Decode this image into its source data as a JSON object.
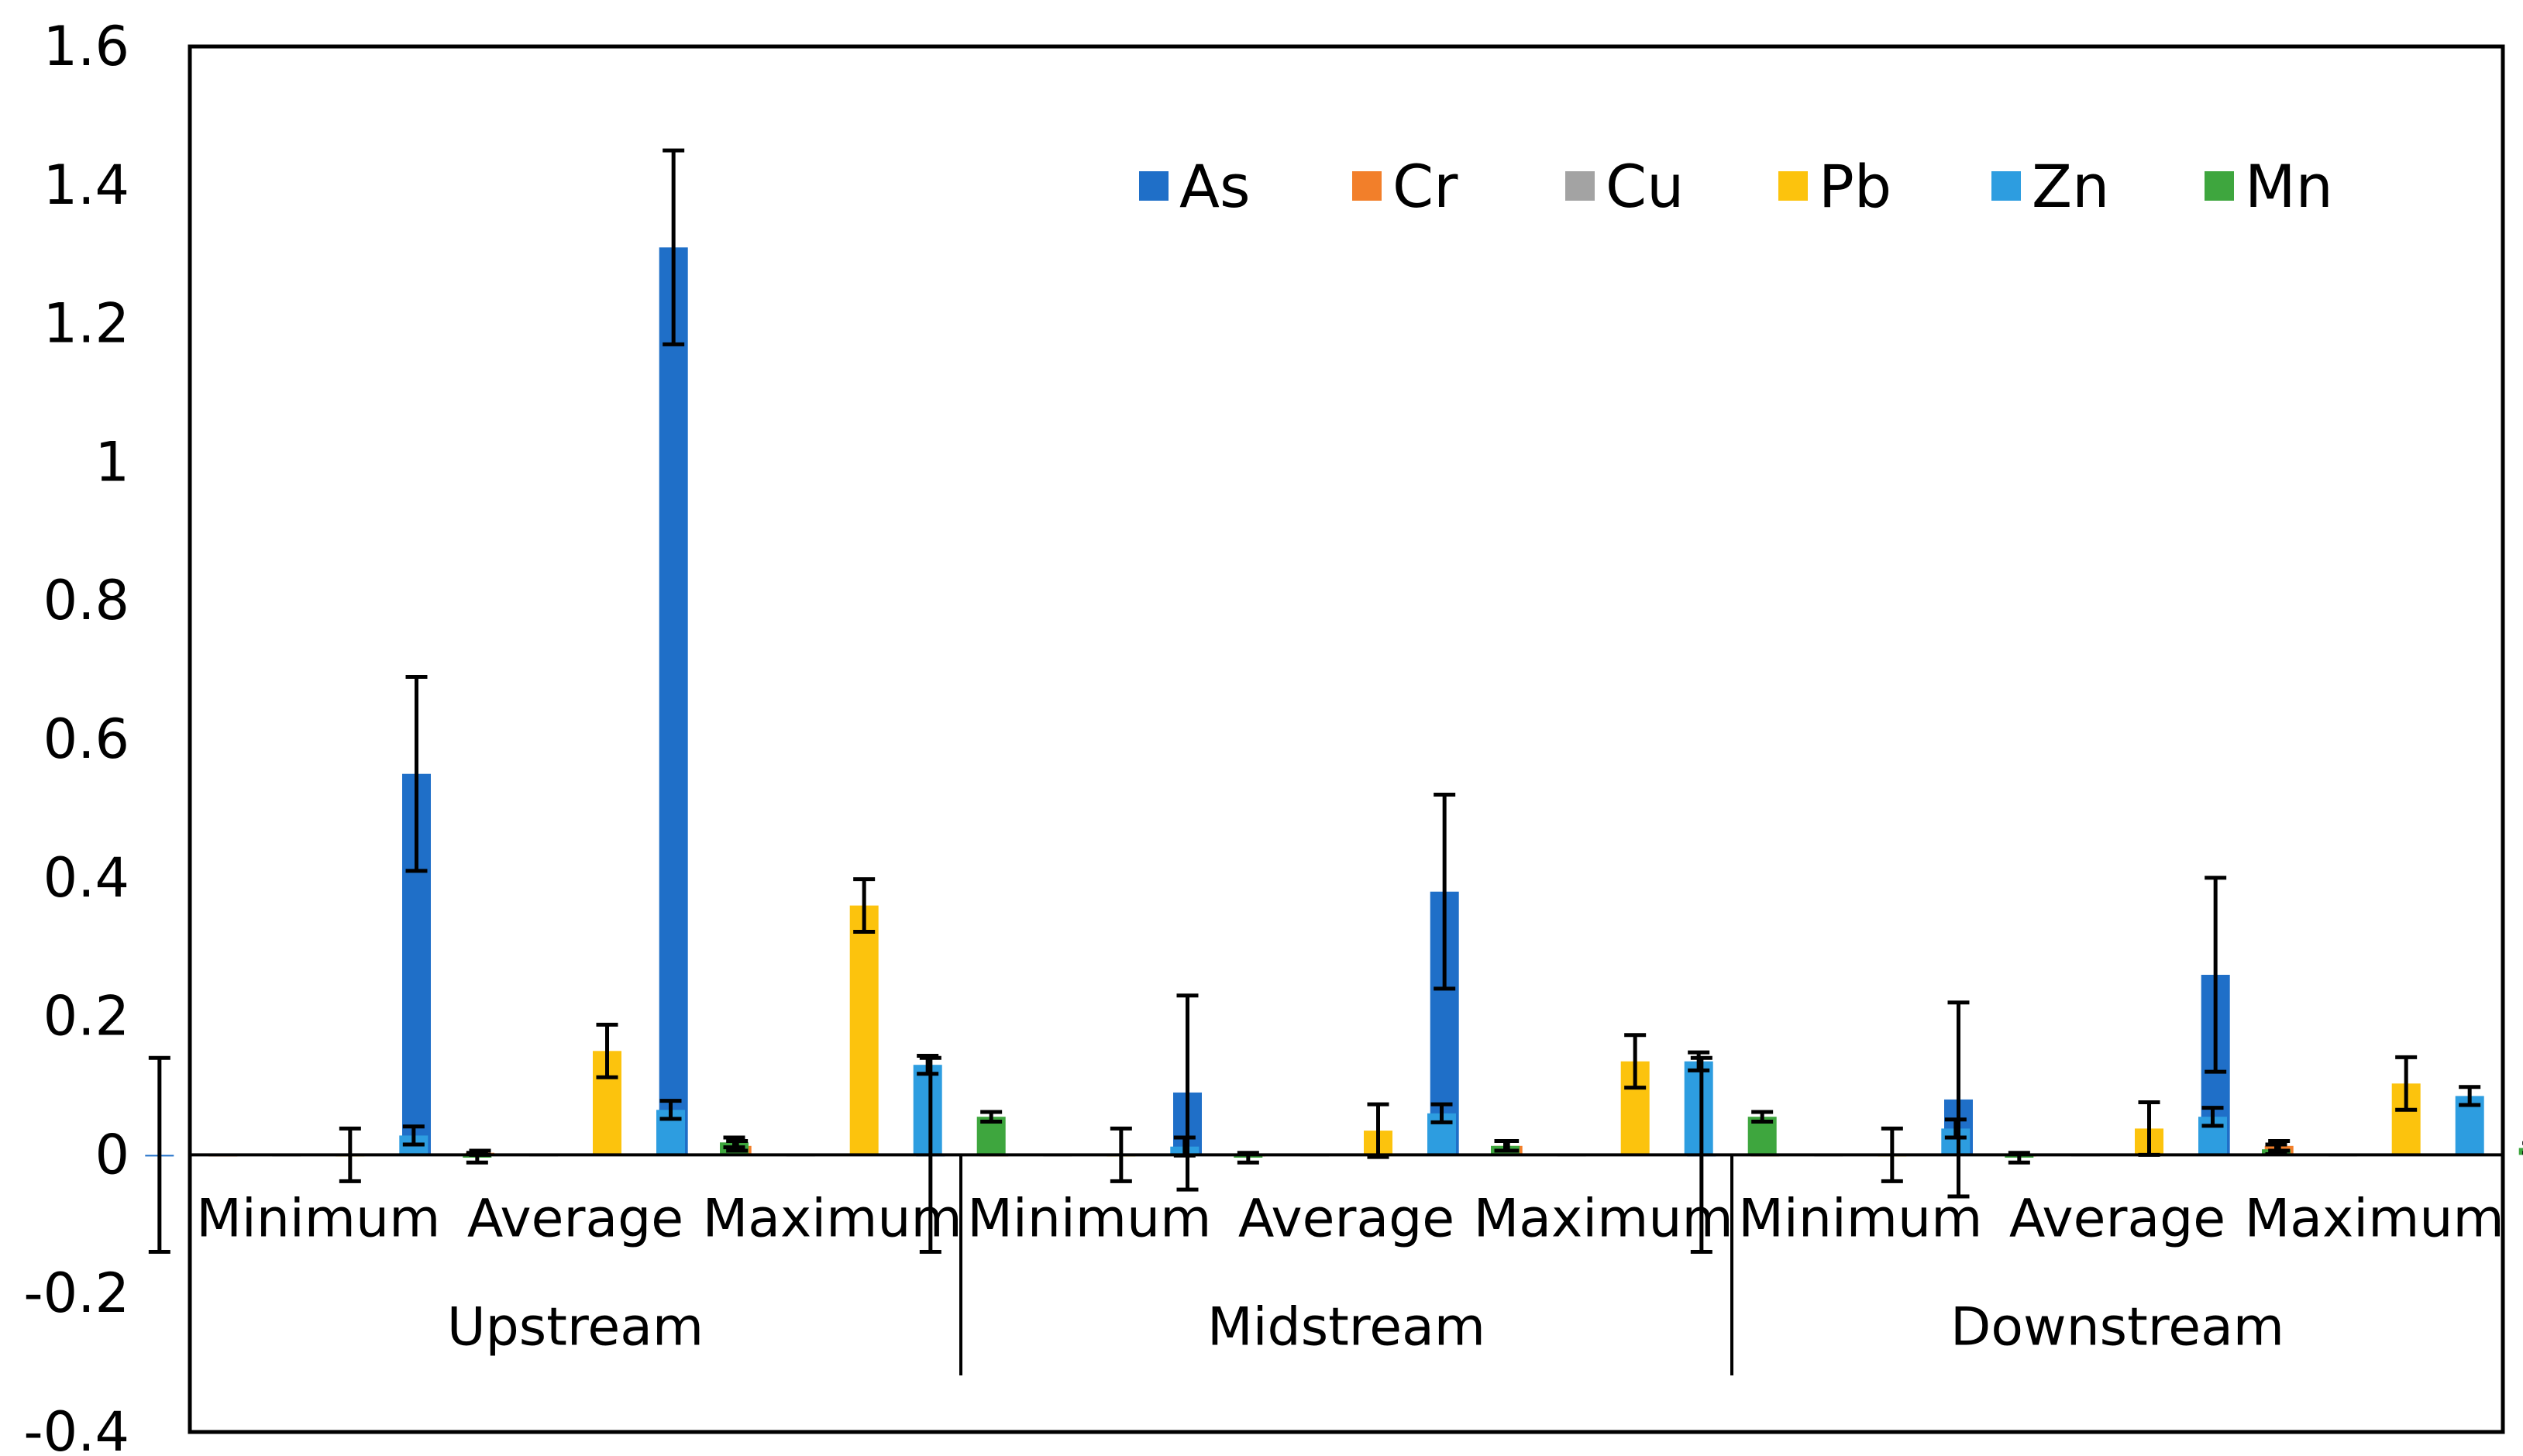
{
  "chart_data": {
    "type": "bar",
    "title": "",
    "xlabel": "",
    "ylabel": "",
    "ylim": [
      -0.4,
      1.6
    ],
    "yticks": [
      -0.4,
      -0.2,
      0,
      0.2,
      0.4,
      0.6,
      0.8,
      1,
      1.2,
      1.4,
      1.6
    ],
    "ytick_labels": [
      "-0.4",
      "-0.2",
      "0",
      "0.2",
      "0.4",
      "0.6",
      "0.8",
      "1",
      "1.2",
      "1.4",
      "1.6"
    ],
    "grid": false,
    "legend_position": "top-right",
    "groups": [
      {
        "label": "Upstream",
        "categories": [
          "Minimum",
          "Average",
          "Maximum"
        ]
      },
      {
        "label": "Midstream",
        "categories": [
          "Minimum",
          "Average",
          "Maximum"
        ]
      },
      {
        "label": "Downstream",
        "categories": [
          "Minimum",
          "Average",
          "Maximum"
        ]
      }
    ],
    "series": [
      {
        "name": "As",
        "color": "#1f6fc8",
        "values": [
          0.0,
          0.55,
          1.31,
          0.0,
          0.09,
          0.38,
          0.0,
          0.08,
          0.26
        ],
        "errors": [
          0.14,
          0.14,
          0.14,
          0.14,
          0.14,
          0.14,
          0.14,
          0.14,
          0.14
        ]
      },
      {
        "name": "Cr",
        "color": "#f27f2a",
        "values": [
          0.0,
          0.003,
          0.013,
          0.0,
          0.0,
          0.013,
          0.0,
          0.0,
          0.013
        ],
        "errors": [
          0.0,
          0.003,
          0.007,
          0.0,
          0.0,
          0.007,
          0.0,
          0.0,
          0.007
        ]
      },
      {
        "name": "Cu",
        "color": "#a3a3a3",
        "values": [
          0.0,
          0.0,
          0.0,
          0.0,
          0.0,
          0.0,
          0.0,
          0.0,
          0.0
        ],
        "errors": [
          0.0,
          0.0,
          0.0,
          0.0,
          0.0,
          0.0,
          0.0,
          0.0,
          0.0
        ]
      },
      {
        "name": "Pb",
        "color": "#fcc30d",
        "values": [
          0.0,
          0.15,
          0.36,
          0.0,
          0.035,
          0.135,
          0.0,
          0.038,
          0.103
        ],
        "errors": [
          0.038,
          0.038,
          0.038,
          0.038,
          0.038,
          0.038,
          0.038,
          0.038,
          0.038
        ]
      },
      {
        "name": "Zn",
        "color": "#2d9de0",
        "values": [
          0.028,
          0.065,
          0.13,
          0.012,
          0.06,
          0.135,
          0.038,
          0.055,
          0.085
        ],
        "errors": [
          0.013,
          0.013,
          0.013,
          0.013,
          0.013,
          0.013,
          0.013,
          0.013,
          0.013
        ]
      },
      {
        "name": "Mn",
        "color": "#3ea63e",
        "values": [
          -0.004,
          0.018,
          0.055,
          -0.004,
          0.013,
          0.055,
          -0.004,
          0.008,
          0.01
        ],
        "errors": [
          0.007,
          0.007,
          0.007,
          0.007,
          0.007,
          0.007,
          0.007,
          0.007,
          0.007
        ]
      }
    ]
  }
}
